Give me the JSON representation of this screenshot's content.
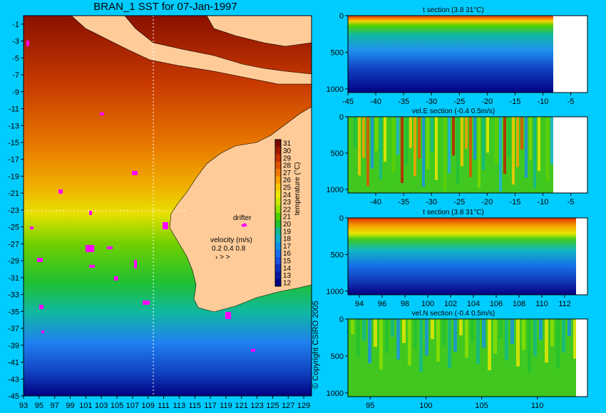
{
  "background": "#00ccff",
  "map": {
    "title": "BRAN_1 SST for 07-Jan-1997",
    "lon_ticks": [
      "93",
      "95",
      "97",
      "99",
      "101",
      "103",
      "105",
      "107",
      "109",
      "111",
      "113",
      "115",
      "117",
      "119",
      "121",
      "123",
      "125",
      "127",
      "129"
    ],
    "lat_ticks": [
      "-1",
      "-3",
      "-5",
      "-7",
      "-9",
      "-11",
      "-13",
      "-15",
      "-17",
      "-19",
      "-21",
      "-23",
      "-25",
      "-27",
      "-29",
      "-31",
      "-33",
      "-35",
      "-37",
      "-39",
      "-41",
      "-43",
      "-45"
    ],
    "lon_range": [
      93,
      130
    ],
    "lat_range": [
      -45,
      0
    ],
    "colorbar": {
      "label": "temperature (°C)",
      "ticks": [
        "31",
        "30",
        "29",
        "28",
        "27",
        "26",
        "25",
        "24",
        "23",
        "22",
        "21",
        "20",
        "19",
        "18",
        "17",
        "16",
        "15",
        "14",
        "13",
        "12"
      ],
      "colors": [
        "#7a0a00",
        "#a01800",
        "#c43000",
        "#e05000",
        "#f07800",
        "#f8a000",
        "#f8c800",
        "#f0e800",
        "#c8e800",
        "#90e000",
        "#50d000",
        "#20c030",
        "#10b890",
        "#10b0c8",
        "#1090e8",
        "#1870f0",
        "#1850e0",
        "#1030c0",
        "#0818a0",
        "#000080"
      ]
    },
    "drifter_label": "drifter",
    "velocity_label": "velocity (m/s)",
    "velocity_scale": "0.2 0.4 0.8",
    "copyright": "© Copyright CSIRO 2005",
    "land_color": "#ffcc99",
    "drifter_color": "#ff00ff"
  },
  "sections": [
    {
      "title": "t section (3.8      31°C)",
      "x_ticks": [
        "-45",
        "-40",
        "-35",
        "-30",
        "-25",
        "-20",
        "-15",
        "-10",
        "-5"
      ],
      "y_ticks": [
        "0",
        "500",
        "1000"
      ]
    },
    {
      "title": "vel.E section (-0.4      0.5m/s)",
      "x_ticks": [
        "-40",
        "-35",
        "-30",
        "-25",
        "-20",
        "-15",
        "-10",
        "-5"
      ],
      "y_ticks": [
        "0",
        "500",
        "1000"
      ]
    },
    {
      "title": "t section (3.8      31°C)",
      "x_ticks": [
        "94",
        "96",
        "98",
        "100",
        "102",
        "104",
        "106",
        "108",
        "110",
        "112"
      ],
      "y_ticks": [
        "0",
        "500",
        "1000"
      ]
    },
    {
      "title": "vel.N section (-0.4      0.5m/s)",
      "x_ticks": [
        "95",
        "100",
        "105",
        "110"
      ],
      "y_ticks": [
        "0",
        "500",
        "1000"
      ]
    }
  ]
}
